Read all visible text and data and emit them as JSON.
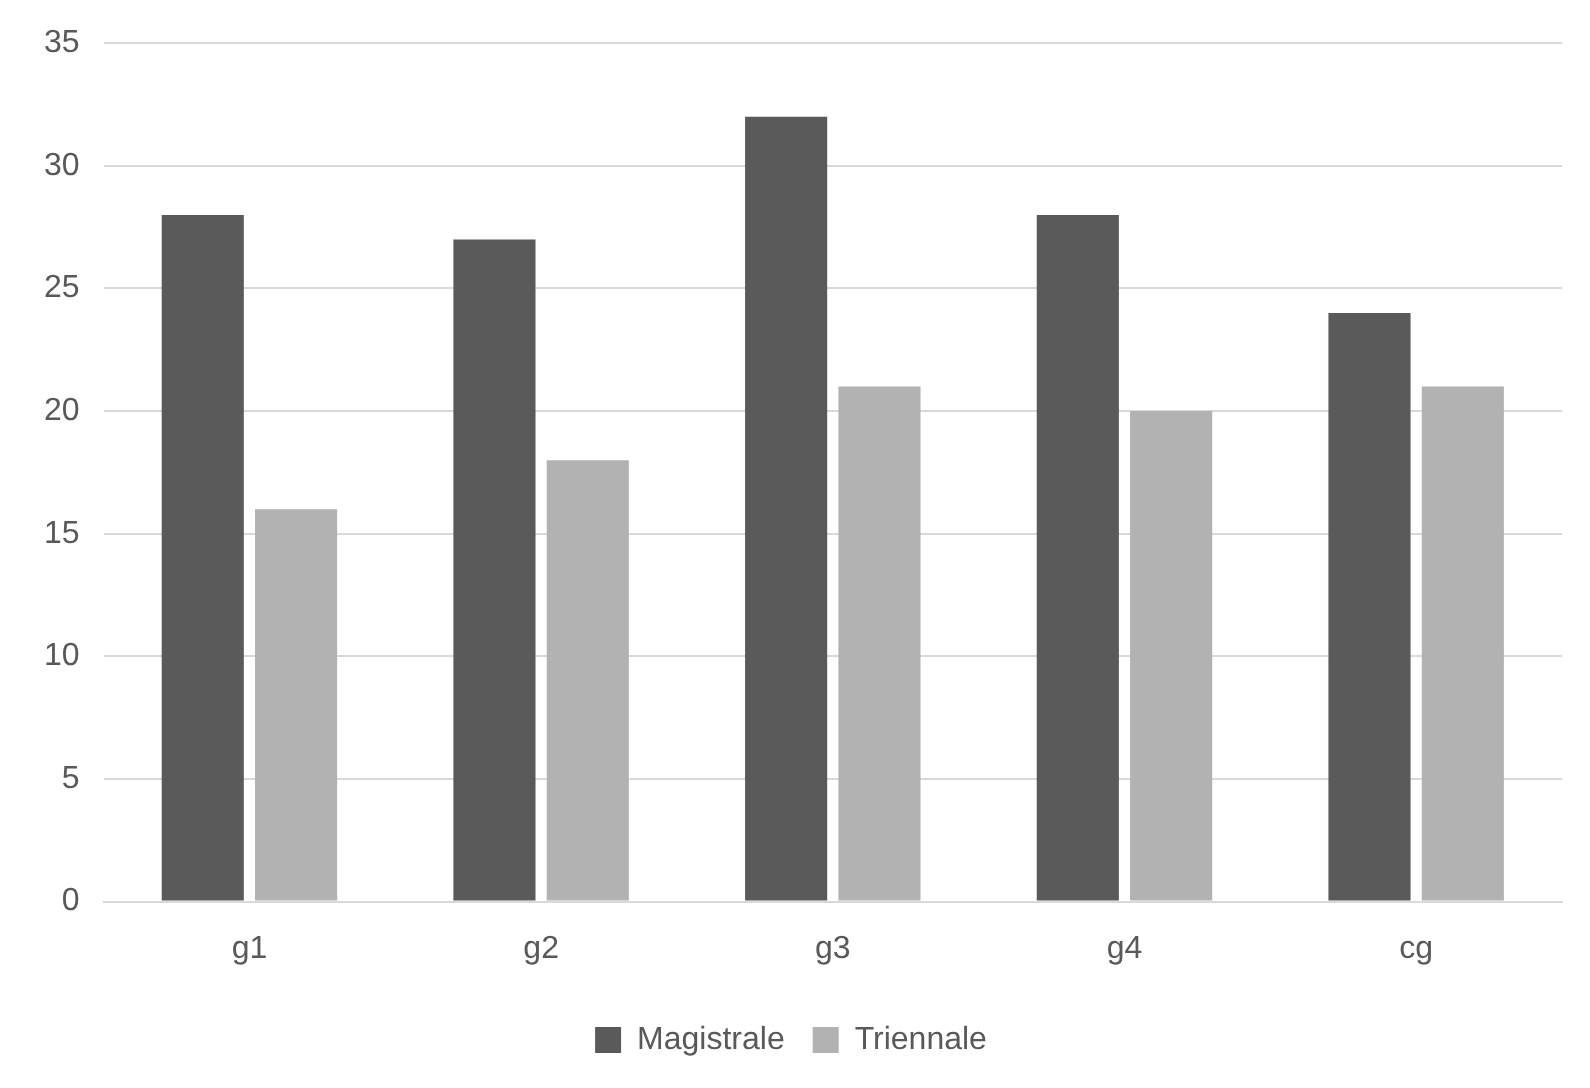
{
  "chart_data": {
    "type": "bar",
    "categories": [
      "g1",
      "g2",
      "g3",
      "g4",
      "cg"
    ],
    "series": [
      {
        "name": "Magistrale",
        "color": "#5a5a5a",
        "values": [
          28,
          27,
          32,
          28,
          24
        ]
      },
      {
        "name": "Triennale",
        "color": "#b2b2b2",
        "values": [
          16,
          18,
          21,
          20,
          21
        ]
      }
    ],
    "ylim": [
      0,
      35
    ],
    "yticks": [
      0,
      5,
      10,
      15,
      20,
      25,
      30,
      35
    ],
    "grid": "y",
    "legend": "bottom"
  }
}
